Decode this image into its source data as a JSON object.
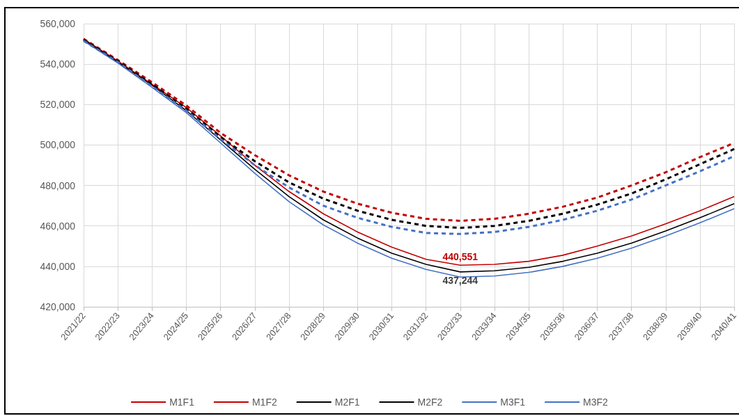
{
  "chart_data": {
    "type": "line",
    "categories": [
      "2021/22",
      "2022/23",
      "2023/24",
      "2024/25",
      "2025/26",
      "2026/27",
      "2027/28",
      "2028/29",
      "2029/30",
      "2030/31",
      "2031/32",
      "2032/33",
      "2033/34",
      "2034/35",
      "2035/36",
      "2036/37",
      "2037/38",
      "2038/39",
      "2039/40",
      "2040/41"
    ],
    "series": [
      {
        "name": "M1F1",
        "color": "#c00000",
        "line_style": "dashed",
        "values": [
          552500,
          542000,
          531000,
          519500,
          506000,
          495000,
          485000,
          477000,
          471000,
          466500,
          463500,
          462500,
          463500,
          466000,
          469500,
          474000,
          480000,
          486500,
          494000,
          501000
        ]
      },
      {
        "name": "M1F2",
        "color": "#c00000",
        "line_style": "solid",
        "values": [
          552500,
          541500,
          530000,
          518500,
          504500,
          490000,
          477000,
          466000,
          457000,
          449500,
          443500,
          440551,
          441000,
          442500,
          445500,
          450000,
          455000,
          461000,
          467500,
          474500
        ],
        "value_labels": [
          null,
          null,
          null,
          null,
          null,
          null,
          null,
          null,
          null,
          null,
          null,
          "440,551",
          null,
          null,
          null,
          null,
          null,
          null,
          null,
          null
        ]
      },
      {
        "name": "M2F1",
        "color": "#000000",
        "line_style": "dashed",
        "values": [
          552000,
          541500,
          530000,
          518000,
          504000,
          492000,
          481500,
          473500,
          467500,
          463000,
          460000,
          459000,
          460000,
          462500,
          466000,
          470500,
          476000,
          483000,
          490500,
          498000
        ]
      },
      {
        "name": "M2F2",
        "color": "#000000",
        "line_style": "solid",
        "values": [
          552000,
          541000,
          529500,
          517000,
          502500,
          488000,
          474500,
          463000,
          454000,
          446500,
          441000,
          437244,
          437800,
          439500,
          442500,
          446500,
          451500,
          457500,
          464000,
          471000
        ],
        "value_labels": [
          null,
          null,
          null,
          null,
          null,
          null,
          null,
          null,
          null,
          null,
          null,
          "437,244",
          null,
          null,
          null,
          null,
          null,
          null,
          null,
          null
        ]
      },
      {
        "name": "M3F1",
        "color": "#4472c4",
        "line_style": "dashed",
        "values": [
          551500,
          541000,
          529000,
          517000,
          503000,
          490000,
          479000,
          470000,
          464000,
          459500,
          456500,
          456000,
          457000,
          459500,
          463000,
          467500,
          473000,
          480000,
          487000,
          494500
        ]
      },
      {
        "name": "M3F2",
        "color": "#4472c4",
        "line_style": "solid",
        "values": [
          551500,
          540500,
          528500,
          516000,
          501000,
          486000,
          472000,
          460500,
          451500,
          444000,
          438500,
          434700,
          435200,
          437000,
          440000,
          444000,
          449000,
          455000,
          461500,
          468500
        ]
      }
    ],
    "ylim": [
      420000,
      560000
    ],
    "yticks": [
      {
        "value": 420000,
        "label": "420,000"
      },
      {
        "value": 440000,
        "label": "440,000"
      },
      {
        "value": 460000,
        "label": "460,000"
      },
      {
        "value": 480000,
        "label": "480,000"
      },
      {
        "value": 500000,
        "label": "500,000"
      },
      {
        "value": 520000,
        "label": "520,000"
      },
      {
        "value": 540000,
        "label": "540,000"
      },
      {
        "value": 560000,
        "label": "560,000"
      }
    ],
    "grid": true,
    "legend": "bottom",
    "marker": "none"
  }
}
